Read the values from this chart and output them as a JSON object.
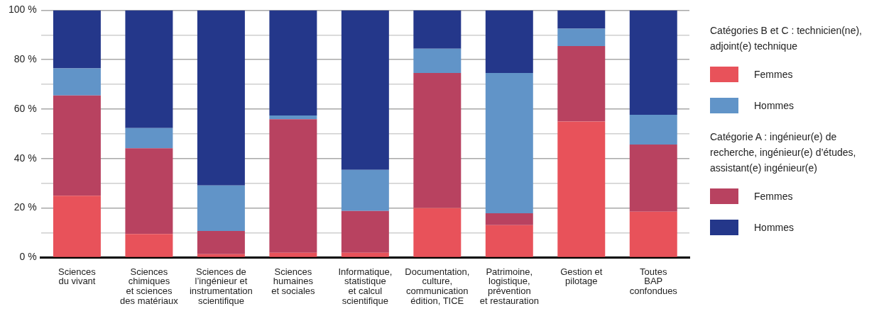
{
  "chart_data": {
    "type": "bar",
    "stacked": true,
    "categories": [
      "Sciences\ndu vivant",
      "Sciences\nchimiques\net sciences\ndes matériaux",
      "Sciences de\nl’ingénieur et\ninstrumentation\nscientifique",
      "Sciences\nhumaines\net sociales",
      "Informatique,\nstatistique\net calcul\nscientifique",
      "Documentation,\nculture,\ncommunication\nédition, TICE",
      "Patrimoine,\nlogistique,\nprévention\net restauration",
      "Gestion et\npilotage",
      "Toutes\nBAP\nconfondues"
    ],
    "series": [
      {
        "name": "Femmes",
        "color": "#e8525a",
        "values": [
          25,
          9.5,
          1.3,
          1.9,
          1.9,
          20,
          13.1,
          55,
          18.5
        ]
      },
      {
        "name": "Femmes",
        "color": "#b84260",
        "values": [
          40.5,
          34.7,
          9.4,
          54,
          16.9,
          54.6,
          4.8,
          30.5,
          27.2
        ]
      },
      {
        "name": "Hommes",
        "color": "#6194c8",
        "values": [
          11,
          8.1,
          18.4,
          1.5,
          16.6,
          9.8,
          56.7,
          7,
          12
        ]
      },
      {
        "name": "Hommes",
        "color": "#24378a",
        "values": [
          23.5,
          47.7,
          70.9,
          42.6,
          64.6,
          15.6,
          25.4,
          7.5,
          42.3
        ]
      }
    ],
    "ylim": [
      0,
      100
    ],
    "yticks": [
      {
        "value": 0,
        "label": "0 %"
      },
      {
        "value": 10,
        "label": null
      },
      {
        "value": 20,
        "label": "20 %"
      },
      {
        "value": 30,
        "label": null
      },
      {
        "value": 40,
        "label": "40 %"
      },
      {
        "value": 50,
        "label": null
      },
      {
        "value": 60,
        "label": "60 %"
      },
      {
        "value": 70,
        "label": null
      },
      {
        "value": 80,
        "label": "80 %"
      },
      {
        "value": 90,
        "label": null
      },
      {
        "value": 100,
        "label": "100 %"
      }
    ],
    "grid": "y",
    "legend": "right",
    "annotations": [
      "Catégories B et C : technicien(ne), adjoint(e) technique",
      "Catégorie A : ingénieur(e) de recherche, ingénieur(e) d’études, assistant(e) ingénieur(e)"
    ]
  }
}
